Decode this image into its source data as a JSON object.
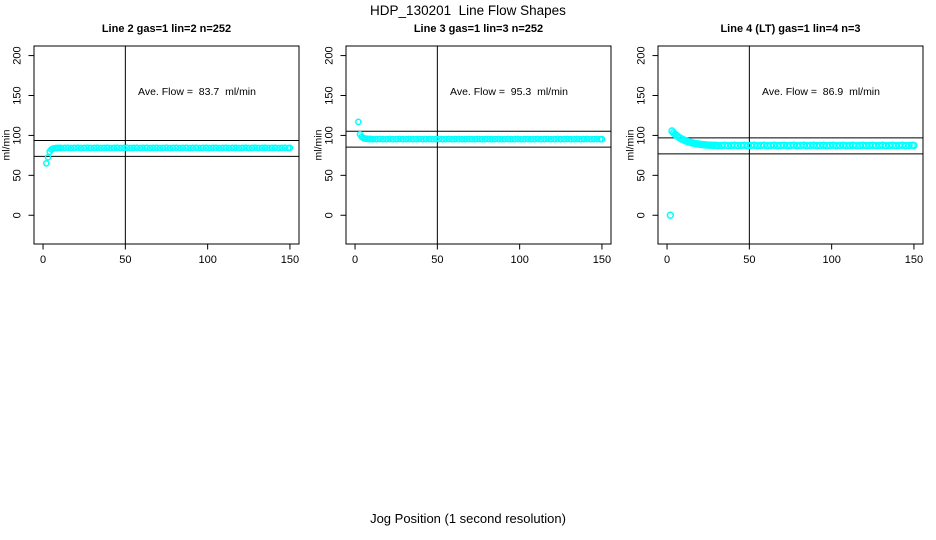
{
  "figure": {
    "title": "HDP_130201  Line Flow Shapes",
    "xlabel": "Jog Position (1 second resolution)"
  },
  "axes": {
    "ylabel": "ml/min",
    "x_ticks": [
      0,
      50,
      100,
      150
    ],
    "y_ticks": [
      0,
      50,
      100,
      150,
      200
    ],
    "x_range": [
      -5.5,
      155.5
    ],
    "y_range": [
      -36,
      212
    ]
  },
  "chart_data": [
    {
      "type": "scatter",
      "title": "Line 2 gas=1 lin=2 n=252",
      "annotation": "Ave. Flow =  83.7  ml/min",
      "ave_flow": 83.7,
      "units": "ml/min",
      "color": "#00FFFF",
      "marker_size": 2.6,
      "ref_vline": 50,
      "ref_hlines": [
        93.7,
        73.7
      ],
      "points": [
        [
          2,
          65
        ],
        [
          3,
          72.5
        ],
        [
          4,
          79.5
        ],
        [
          5,
          82.3
        ],
        [
          6,
          83.5
        ],
        [
          7,
          84.0
        ],
        [
          8,
          84.2
        ],
        [
          9,
          84.3
        ],
        [
          10,
          84.4
        ]
      ],
      "band": {
        "from": 11,
        "to": 150,
        "step": 2,
        "y": 84.45,
        "jitter": 0.15
      }
    },
    {
      "type": "scatter",
      "title": "Line 3 gas=1 lin=3 n=252",
      "annotation": "Ave. Flow =  95.3  ml/min",
      "ave_flow": 95.3,
      "units": "ml/min",
      "color": "#00FFFF",
      "marker_size": 2.6,
      "ref_vline": 50,
      "ref_hlines": [
        105.3,
        85.3
      ],
      "points": [
        [
          2,
          117
        ],
        [
          3,
          101.5
        ],
        [
          4,
          98.2
        ],
        [
          5,
          96.8
        ],
        [
          6,
          96.1
        ],
        [
          7,
          95.8
        ],
        [
          8,
          95.6
        ],
        [
          9,
          95.5
        ],
        [
          10,
          95.5
        ]
      ],
      "band": {
        "from": 11,
        "to": 150,
        "step": 2,
        "y": 95.4,
        "jitter": 0.15
      }
    },
    {
      "type": "scatter",
      "title": "Line 4 (LT) gas=1 lin=4 n=3",
      "annotation": "Ave. Flow =  86.9  ml/min",
      "ave_flow": 86.9,
      "units": "ml/min",
      "color": "#00FFFF",
      "marker_size": 3.0,
      "ref_vline": 50,
      "ref_hlines": [
        96.9,
        76.9
      ],
      "points": [
        [
          2,
          0
        ],
        [
          3,
          105.5
        ],
        [
          4,
          103.2
        ],
        [
          5,
          101.2
        ],
        [
          6,
          99.4
        ],
        [
          7,
          97.9
        ],
        [
          8,
          96.6
        ],
        [
          9,
          95.4
        ],
        [
          10,
          94.4
        ],
        [
          11,
          93.5
        ],
        [
          12,
          92.7
        ],
        [
          13,
          92.0
        ],
        [
          14,
          91.4
        ],
        [
          15,
          90.8
        ],
        [
          16,
          90.3
        ],
        [
          17,
          89.9
        ],
        [
          18,
          89.5
        ],
        [
          19,
          89.2
        ],
        [
          20,
          88.9
        ],
        [
          21,
          88.6
        ],
        [
          22,
          88.4
        ],
        [
          23,
          88.2
        ],
        [
          24,
          88.0
        ],
        [
          25,
          87.9
        ],
        [
          26,
          87.8
        ],
        [
          27,
          87.7
        ],
        [
          28,
          87.6
        ],
        [
          29,
          87.5
        ],
        [
          30,
          87.5
        ]
      ],
      "band": {
        "from": 31,
        "to": 150,
        "step": 2,
        "y": 87.45,
        "jitter": 0.3
      }
    }
  ]
}
